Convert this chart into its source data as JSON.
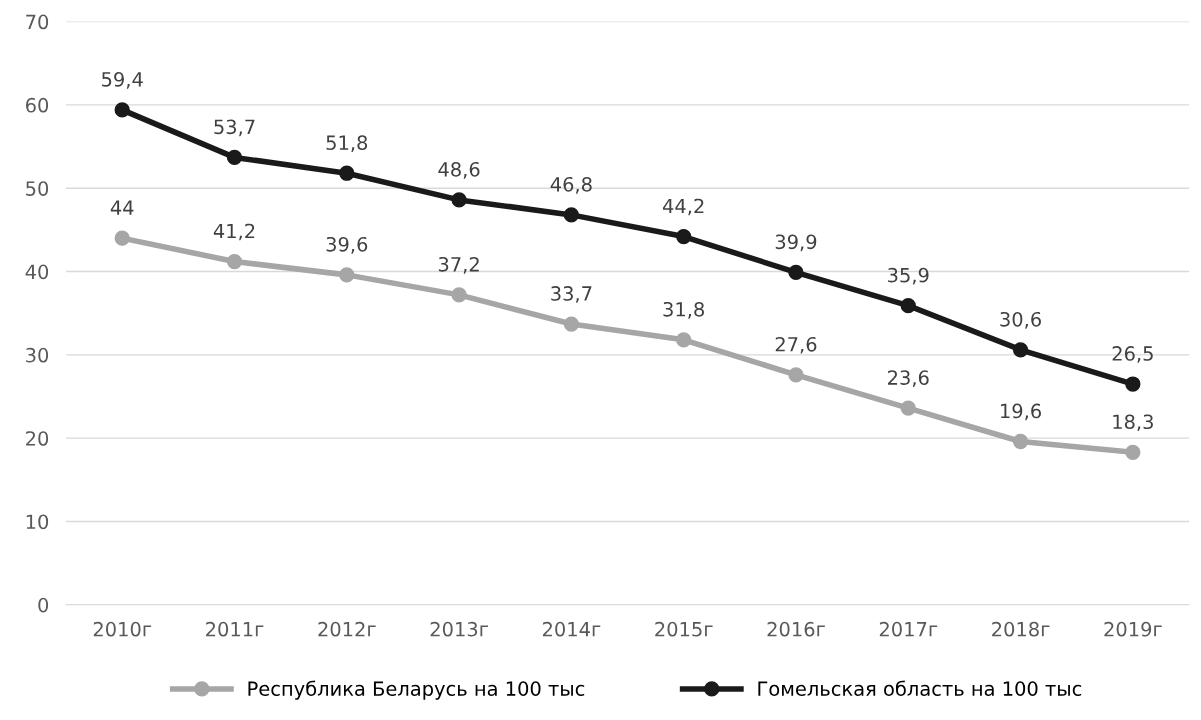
{
  "chart_data": {
    "type": "line",
    "categories": [
      "2010г",
      "2011г",
      "2012г",
      "2013г",
      "2014г",
      "2015г",
      "2016г",
      "2017г",
      "2018г",
      "2019г"
    ],
    "series": [
      {
        "name": "Республика Беларусь на 100 тыс",
        "color": "#a6a6a6",
        "values": [
          44,
          41.2,
          39.6,
          37.2,
          33.7,
          31.8,
          27.6,
          23.6,
          19.6,
          18.3
        ],
        "value_labels": [
          "44",
          "41,2",
          "39,6",
          "37,2",
          "33,7",
          "31,8",
          "27,6",
          "23,6",
          "19,6",
          "18,3"
        ]
      },
      {
        "name": "Гомельская область на 100 тыс",
        "color": "#1a1a1a",
        "values": [
          59.4,
          53.7,
          51.8,
          48.6,
          46.8,
          44.2,
          39.9,
          35.9,
          30.6,
          26.5
        ],
        "value_labels": [
          "59,4",
          "53,7",
          "51,8",
          "48,6",
          "46,8",
          "44,2",
          "39,9",
          "35,9",
          "30,6",
          "26,5"
        ]
      }
    ],
    "ylim": [
      0,
      70
    ],
    "yticks": [
      0,
      10,
      20,
      30,
      40,
      50,
      60,
      70
    ],
    "grid": "y",
    "legend": "bottom",
    "marker": "circle",
    "line_style": "solid"
  }
}
